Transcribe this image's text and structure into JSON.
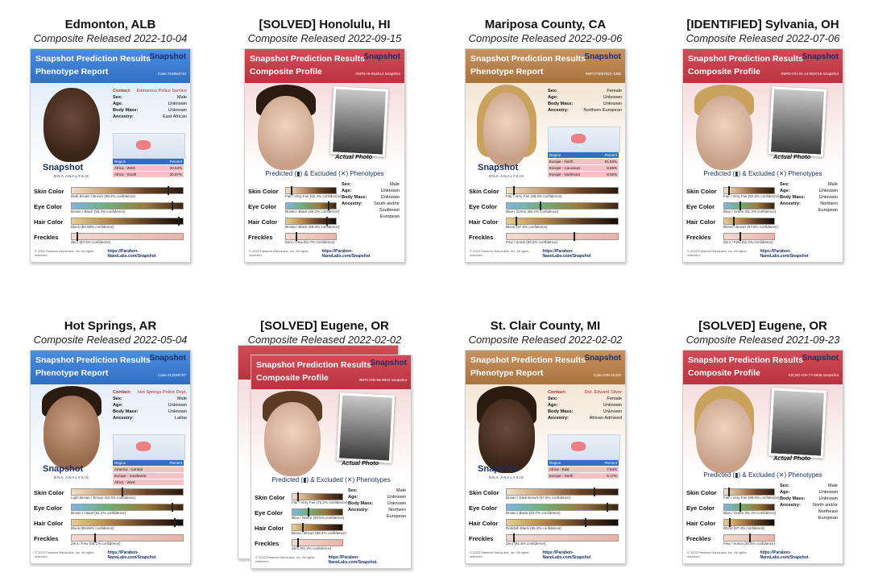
{
  "cards": [
    {
      "title": "Edmonton, ALB",
      "subtitle": "Composite Released 2022-10-04",
      "header_line1": "Snapshot Prediction Results",
      "header_line2": "Phenotype Report",
      "case": "Case #18654742",
      "contact_key": "Contact:",
      "contact_val": "Edmonton Police Service",
      "sex_key": "Sex:",
      "sex_val": "Male",
      "age_key": "Age:",
      "age_val": "Unknown",
      "mass_key": "Body Mass:",
      "mass_val": "Unknown",
      "anc_key": "Ancestry:",
      "anc_val": "East African",
      "region_hdr": "Region",
      "percent_hdr": "Percent",
      "region_rows": [
        {
          "r": "Africa - West",
          "p": "20.64%"
        },
        {
          "r": "Africa - South",
          "p": "20.67%"
        }
      ],
      "skin": {
        "label": "Skin Color",
        "value": "Dark Brown / Brown (99.4% confidence)",
        "level": 0.86
      },
      "eye": {
        "label": "Eye Color",
        "value": "Brown / Black (55.3% confidence)",
        "level": 0.9
      },
      "hair": {
        "label": "Hair Color",
        "value": "Black (99.99% confidence)",
        "level": 0.96
      },
      "freck": {
        "label": "Freckles",
        "value": "Zero (87.6% confidence)",
        "level": 0.04
      },
      "url": "https://Parabon-NanoLabs.com/Snapshot",
      "copyright": "© 2022 Parabon NanoLabs, Inc. All rights reserved."
    },
    {
      "title": "[SOLVED] Honolulu, HI",
      "subtitle": "Composite Released 2022-09-15",
      "header_line1": "Snapshot Prediction Results",
      "header_line2": "Composite Profile",
      "case": "#SPD-HI-916014 Snapshot",
      "photo_caption": "Actual Photo",
      "pred_text": "Predicted (▮) & Excluded (✕) Phenotypes",
      "sex_key": "Sex:",
      "sex_val": "Male",
      "age_key": "Age:",
      "age_val": "Unknown",
      "mass_key": "Body Mass:",
      "mass_val": "Unknown",
      "anc_key": "Ancestry:",
      "anc_val": "South and/or Southeast European",
      "skin": {
        "label": "Skin Color",
        "value": "Fair / Very Fair (62.4% confidence)",
        "level": 0.1
      },
      "eye": {
        "label": "Eye Color",
        "value": "Brown / Black (46.2% confidence)",
        "level": 0.84
      },
      "hair": {
        "label": "Hair Color",
        "value": "Brown / Black (99.8% confidence)",
        "level": 0.8
      },
      "freck": {
        "label": "Freckles",
        "value": "Zero / Few (51.7% confidence)",
        "level": 0.2
      },
      "url": "https://Parabon-NanoLabs.com/Snapshot",
      "copyright": "© 2022 Parabon NanoLabs, Inc. All rights reserved."
    },
    {
      "title": "Mariposa County, CA",
      "subtitle": "Composite Released 2022-09-06",
      "header_line1": "Snapshot Prediction Results",
      "header_line2": "Phenotype Report",
      "case": "#MP170097522-4385",
      "sex_key": "Sex:",
      "sex_val": "Female",
      "age_key": "Age:",
      "age_val": "Unknown",
      "mass_key": "Body Mass:",
      "mass_val": "Unknown",
      "anc_key": "Ancestry:",
      "anc_val": "Northern European",
      "region_hdr": "Region",
      "percent_hdr": "Percent",
      "region_rows": [
        {
          "r": "Europe - North",
          "p": "81.83%"
        },
        {
          "r": "Europe - Caucasus",
          "p": "8.69%"
        },
        {
          "r": "Europe - Northeast",
          "p": "8.02%"
        }
      ],
      "skin": {
        "label": "Skin Color",
        "value": "Fair / Very Fair (98.6% confidence)",
        "level": 0.06
      },
      "eye": {
        "label": "Eye Color",
        "value": "Blue / Green (85.4% confidence)",
        "level": 0.3
      },
      "hair": {
        "label": "Hair Color",
        "value": "Blond (97.8% confidence)",
        "level": 0.08
      },
      "freck": {
        "label": "Freckles",
        "value": "Few / Some (29.2% confidence)",
        "level": 0.6
      },
      "url": "https://Parabon-NanoLabs.com/Snapshot",
      "copyright": "© 2022 Parabon NanoLabs, Inc. All rights reserved."
    },
    {
      "title": "[IDENTIFIED] Sylvania, OH",
      "subtitle": "Composite Released 2022-07-06",
      "header_line1": "Snapshot Prediction Results",
      "header_line2": "Composite Profile",
      "case": "#SPD-OH-01-14-803715 Snapshot",
      "photo_caption": "Actual Photo",
      "pred_text": "Predicted (▮) & Excluded (✕) Phenotypes",
      "sex_key": "Sex:",
      "sex_val": "Male",
      "age_key": "Age:",
      "age_val": "Unknown",
      "mass_key": "Body Mass:",
      "mass_val": "Unknown",
      "anc_key": "Ancestry:",
      "anc_val": "Northern European",
      "skin": {
        "label": "Skin Color",
        "value": "Fair / Very Fair (92.8% confidence)",
        "level": 0.08
      },
      "eye": {
        "label": "Eye Color",
        "value": "Blue / Green (81.3% confidence)",
        "level": 0.3
      },
      "hair": {
        "label": "Hair Color",
        "value": "Blond / Brown (97.9% confidence)",
        "level": 0.18
      },
      "freck": {
        "label": "Freckles",
        "value": "Zero / Few (51.2% confidence)",
        "level": 0.3
      },
      "url": "https://Parabon-NanoLabs.com/Snapshot",
      "copyright": "© 2022 Parabon NanoLabs, Inc. All rights reserved."
    },
    {
      "title": "Hot Springs, AR",
      "subtitle": "Composite Released 2022-05-04",
      "header_line1": "Snapshot Prediction Results",
      "header_line2": "Phenotype Report",
      "case": "Case #13160767",
      "contact_key": "Contact:",
      "contact_val": "Hot Springs Police Dept.",
      "sex_key": "Sex:",
      "sex_val": "Male",
      "age_key": "Age:",
      "age_val": "Unknown",
      "mass_key": "Body Mass:",
      "mass_val": "Unknown",
      "anc_key": "Ancestry:",
      "anc_val": "Latino",
      "region_hdr": "Region",
      "percent_hdr": "Percent",
      "region_rows": [
        {
          "r": "America - Central",
          "p": ""
        },
        {
          "r": "Europe - Southwest",
          "p": ""
        },
        {
          "r": "Africa - West",
          "p": ""
        }
      ],
      "skin": {
        "label": "Skin Color",
        "value": "Light Brown / Brown (53.3% confidence)",
        "level": 0.45
      },
      "eye": {
        "label": "Eye Color",
        "value": "Brown / Hazel (61.2% confidence)",
        "level": 0.9
      },
      "hair": {
        "label": "Hair Color",
        "value": "Black (99.99% confidence)",
        "level": 0.92
      },
      "freck": {
        "label": "Freckles",
        "value": "Zero / Few (56.1% confidence)",
        "level": 0.2
      },
      "url": "https://Parabon-NanoLabs.com/Snapshot",
      "copyright": "© 2022 Parabon NanoLabs, Inc. All rights reserved."
    },
    {
      "title": "[SOLVED] Eugene, OR",
      "subtitle": "Composite Released 2022-02-02",
      "header_line1": "Snapshot Prediction Results",
      "header_line2": "Composite Profile",
      "case": "#EPD-OR-96-9010 Snapshot",
      "photo_caption": "Actual Photo",
      "pred_text": "Predicted (▮) & Excluded (✕) Phenotypes",
      "sex_key": "Sex:",
      "sex_val": "Male",
      "age_key": "Age:",
      "age_val": "Unknown",
      "mass_key": "Body Mass:",
      "mass_val": "Unknown",
      "anc_key": "Ancestry:",
      "anc_val": "Northern European",
      "skin": {
        "label": "Skin Color",
        "value": "Fair / Very Fair (75.2% confidence)",
        "level": 0.1
      },
      "eye": {
        "label": "Eye Color",
        "value": "Blue / Green (94.5% confidence)",
        "level": 0.3
      },
      "hair": {
        "label": "Hair Color",
        "value": "Blond / Brown (98.4% confidence)",
        "level": 0.2
      },
      "freck": {
        "label": "Freckles",
        "value": "Zero (91.3% confidence)",
        "level": 0.1
      },
      "url": "https://Parabon-NanoLabs.com/Snapshot",
      "copyright": "© 2022 Parabon NanoLabs, Inc. All rights reserved."
    },
    {
      "title": "St. Clair County, MI",
      "subtitle": "Composite Released 2022-02-02",
      "header_line1": "Snapshot Prediction Results",
      "header_line2": "Phenotype Report",
      "case": "Case #08-15402",
      "contact_key": "Contact:",
      "contact_val": "Det. Edward Silver",
      "sex_key": "Sex:",
      "sex_val": "Female",
      "age_key": "Age:",
      "age_val": "Unknown",
      "mass_key": "Body Mass:",
      "mass_val": "Unknown",
      "anc_key": "Ancestry:",
      "anc_val": "African Admixed",
      "region_hdr": "Region",
      "percent_hdr": "Percent",
      "region_rows": [
        {
          "r": "Africa - East",
          "p": "7.64%"
        },
        {
          "r": "Europe - North",
          "p": "6.17%"
        }
      ],
      "skin": {
        "label": "Skin Color",
        "value": "Brown / Dark Brown (97.6% confidence)",
        "level": 0.78
      },
      "eye": {
        "label": "Eye Color",
        "value": "Brown / Black (53.7% confidence)",
        "level": 0.9
      },
      "hair": {
        "label": "Hair Color",
        "value": "Reddish Black (86.3% confidence)",
        "level": 0.7
      },
      "freck": {
        "label": "Freckles",
        "value": "Zero (91.8% confidence)",
        "level": 0.06
      },
      "url": "https://Parabon-NanoLabs.com/Snapshot",
      "copyright": "© 2022 Parabon NanoLabs, Inc. All rights reserved."
    },
    {
      "title": "[SOLVED] Eugene, OR",
      "subtitle": "Composite Released 2021-09-23",
      "header_line1": "Snapshot Prediction Results",
      "header_line2": "Composite Profile",
      "case": "#JCSO-OR-77-6636 Snapshot",
      "photo_caption": "Actual Photo",
      "pred_text": "Predicted (▮) & Excluded (✕) Phenotypes",
      "sex_key": "Sex:",
      "sex_val": "Male",
      "age_key": "Age:",
      "age_val": "Unknown",
      "mass_key": "Body Mass:",
      "mass_val": "Unknown",
      "anc_key": "Ancestry:",
      "anc_val": "North and/or Northeast European",
      "skin": {
        "label": "Skin Color",
        "value": "Fair / Very Fair (86.8% confidence)",
        "level": 0.08
      },
      "eye": {
        "label": "Eye Color",
        "value": "Blue / Green (91.4% confidence)",
        "level": 0.3
      },
      "hair": {
        "label": "Hair Color",
        "value": "Blond (87.4% confidence)",
        "level": 0.1
      },
      "freck": {
        "label": "Freckles",
        "value": "Few / Some (39.3% confidence)",
        "level": 0.5
      },
      "url": "https://Parabon-NanoLabs.com/Snapshot",
      "copyright": "© 2022 Parabon NanoLabs, Inc. All rights reserved."
    }
  ],
  "snapshot_logo": "Snapshot",
  "snapshot_sub": "DNA ANALYSIS"
}
